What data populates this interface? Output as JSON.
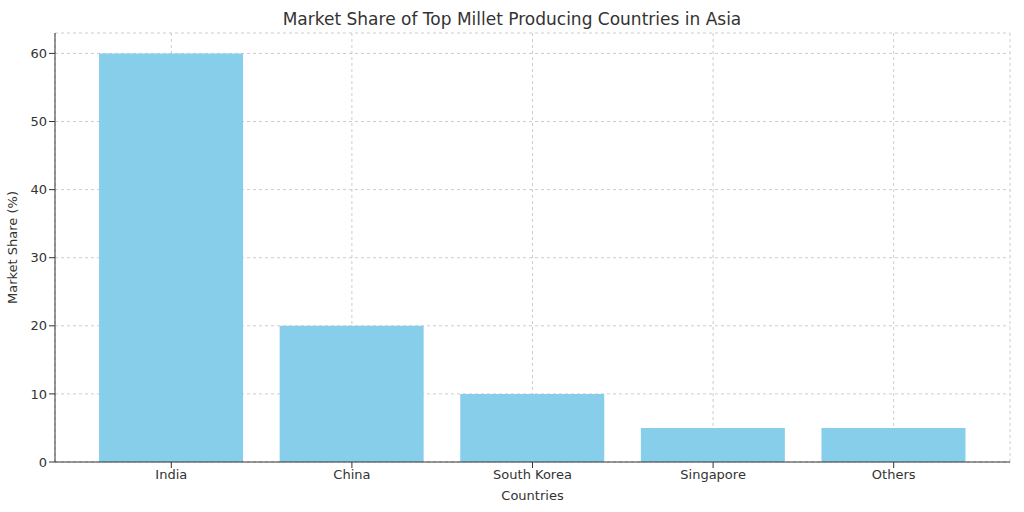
{
  "chart_data": {
    "type": "bar",
    "title": "Market Share of Top Millet Producing Countries in Asia",
    "xlabel": "Countries",
    "ylabel": "Market Share (%)",
    "categories": [
      "India",
      "China",
      "South Korea",
      "Singapore",
      "Others"
    ],
    "values": [
      60,
      20,
      10,
      5,
      5
    ],
    "color": "#87ceeb",
    "ylim": [
      0,
      63
    ],
    "yticks": [
      0,
      10,
      20,
      30,
      40,
      50,
      60
    ],
    "grid": true
  }
}
